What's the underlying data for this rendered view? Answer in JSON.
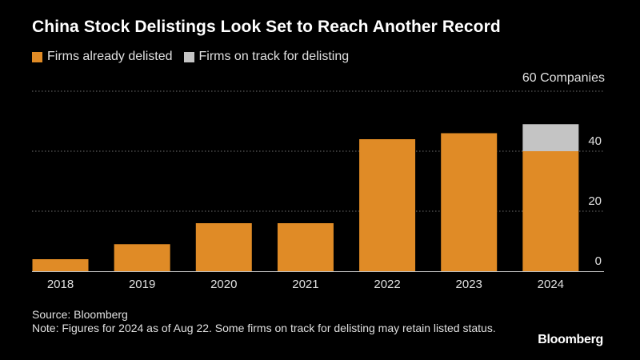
{
  "title": "China Stock Delistings Look Set to Reach Another Record",
  "legend": [
    {
      "label": "Firms already delisted",
      "color": "#e08b26"
    },
    {
      "label": "Firms on track for delisting",
      "color": "#c4c4c4"
    }
  ],
  "unit_label": "60 Companies",
  "source": "Source: Bloomberg",
  "note": "Note: Figures for 2024 as of Aug 22. Some firms on track for delisting may retain listed status.",
  "brand": "Bloomberg",
  "chart_data": {
    "type": "bar",
    "stacked": true,
    "categories": [
      "2018",
      "2019",
      "2020",
      "2021",
      "2022",
      "2023",
      "2024"
    ],
    "series": [
      {
        "name": "Firms already delisted",
        "values": [
          4,
          9,
          16,
          16,
          44,
          46,
          40
        ],
        "color": "#e08b26"
      },
      {
        "name": "Firms on track for delisting",
        "values": [
          0,
          0,
          0,
          0,
          0,
          0,
          9
        ],
        "color": "#c4c4c4"
      }
    ],
    "ylim": [
      0,
      60
    ],
    "yticks": [
      {
        "value": 0,
        "label": "0"
      },
      {
        "value": 20,
        "label": "20"
      },
      {
        "value": 40,
        "label": "40"
      }
    ],
    "grid": true,
    "axis_side": "right"
  }
}
